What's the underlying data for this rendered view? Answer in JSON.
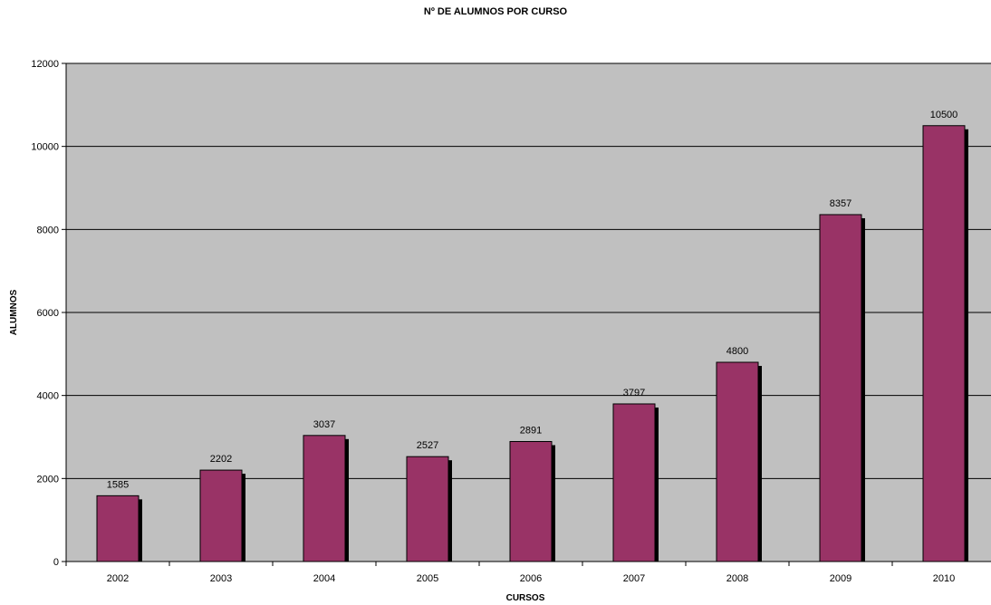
{
  "chart_data": {
    "type": "bar",
    "title": "Nº DE ALUMNOS POR CURSO",
    "xlabel": "CURSOS",
    "ylabel": "ALUMNOS",
    "categories": [
      "2002",
      "2003",
      "2004",
      "2005",
      "2006",
      "2007",
      "2008",
      "2009",
      "2010"
    ],
    "values": [
      1585,
      2202,
      3037,
      2527,
      2891,
      3797,
      4800,
      8357,
      10500
    ],
    "ylim": [
      0,
      12000
    ],
    "yticks": [
      0,
      2000,
      4000,
      6000,
      8000,
      10000,
      12000
    ],
    "grid": true,
    "legend": "none",
    "bar_color": "#993366",
    "shadow_color": "#000000",
    "plot_background": "#c0c0c0"
  }
}
